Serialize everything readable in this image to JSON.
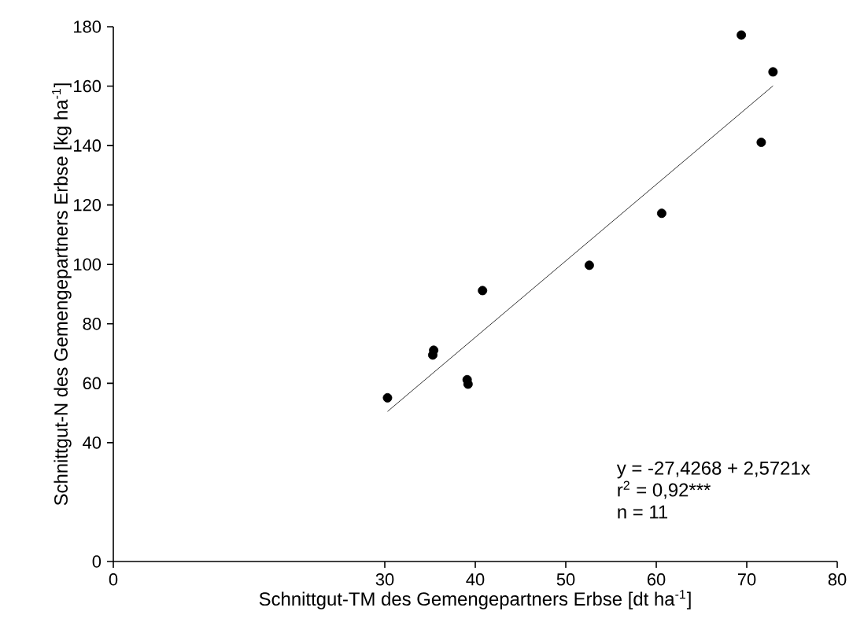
{
  "chart_data": {
    "type": "scatter",
    "xlabel": "Schnittgut-TM des Gemengepartners Erbse [dt ha$^{-1}$]",
    "ylabel": "Schnittgut-N des Gemengepartners Erbse [kg ha$^{-1}$]",
    "series": [
      {
        "color": "#000000",
        "x": [
          30.3,
          35.3,
          35.4,
          39.1,
          39.2,
          40.8,
          52.6,
          60.6,
          69.4,
          71.6,
          72.9
        ],
        "values": [
          55.1,
          69.5,
          71.1,
          61.2,
          59.7,
          91.2,
          99.7,
          117.2,
          177.2,
          141.1,
          164.8
        ]
      },
      {
        "type": "line",
        "color": "#000000",
        "marker": "none",
        "x": [
          30.3,
          72.9
        ],
        "values": [
          50.5,
          160.1
        ]
      }
    ],
    "xlim": [
      0,
      80
    ],
    "ylim": [
      0,
      180
    ],
    "xticks": [
      0,
      30,
      40,
      50,
      60,
      70,
      80
    ],
    "yticks": [
      0,
      40,
      60,
      80,
      100,
      120,
      140,
      160,
      180
    ],
    "marker": "circle",
    "annotations": [
      "y =  -27,4268 + 2,5721x",
      "r$^{2}$ =  0,92***",
      "n = 11"
    ]
  }
}
